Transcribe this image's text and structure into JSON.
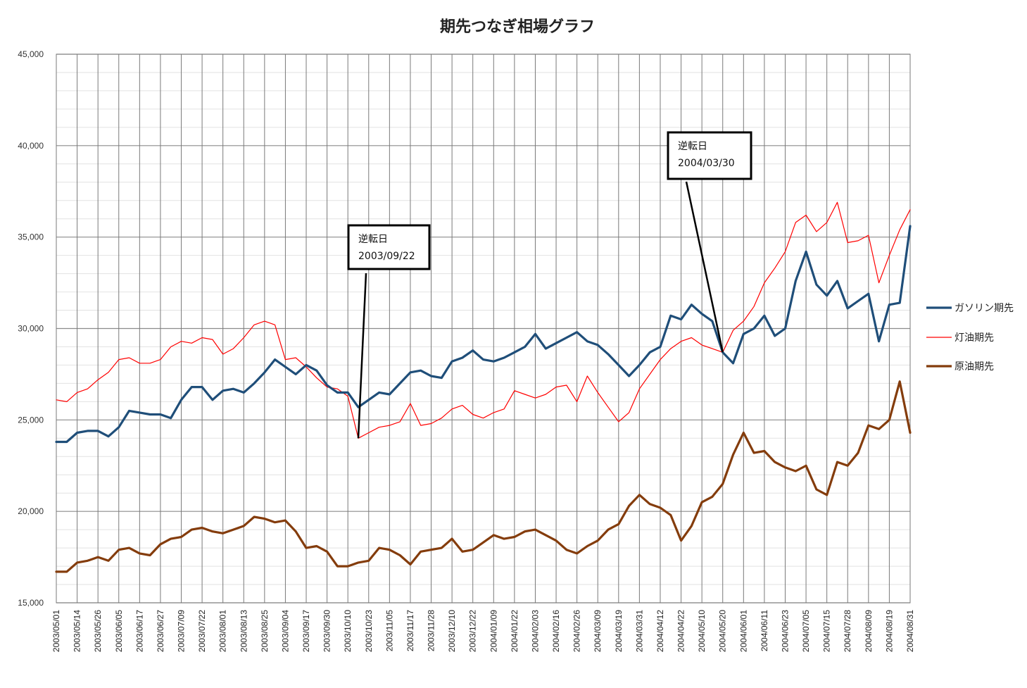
{
  "chart_data": {
    "type": "line",
    "title": "期先つなぎ相場グラフ",
    "xlabel": "",
    "ylabel": "",
    "ylim": [
      15000,
      45000
    ],
    "yticks": [
      15000,
      20000,
      25000,
      30000,
      35000,
      40000,
      45000
    ],
    "ytick_labels": [
      "15,000",
      "20,000",
      "25,000",
      "30,000",
      "35,000",
      "40,000",
      "45,000"
    ],
    "grid": true,
    "legend_position": "right",
    "x_tick_labels": [
      "2003/05/01",
      "2003/05/14",
      "2003/05/26",
      "2003/06/05",
      "2003/06/17",
      "2003/06/27",
      "2003/07/09",
      "2003/07/22",
      "2003/08/01",
      "2003/08/13",
      "2003/08/25",
      "2003/09/04",
      "2003/09/17",
      "2003/09/30",
      "2003/10/10",
      "2003/10/23",
      "2003/11/05",
      "2003/11/17",
      "2003/11/28",
      "2003/12/10",
      "2003/12/22",
      "2004/01/09",
      "2004/01/22",
      "2004/02/03",
      "2004/02/16",
      "2004/02/26",
      "2004/03/09",
      "2004/03/19",
      "2004/03/31",
      "2004/04/12",
      "2004/04/22",
      "2004/05/10",
      "2004/05/20",
      "2004/06/01",
      "2004/06/11",
      "2004/06/23",
      "2004/07/05",
      "2004/07/15",
      "2004/07/28",
      "2004/08/09",
      "2004/08/19",
      "2004/08/31"
    ],
    "x_index_range": [
      0,
      82
    ],
    "series": [
      {
        "name": "ガソリン期先",
        "color": "#1f4e79",
        "x": [
          0,
          1,
          2,
          3,
          4,
          5,
          6,
          7,
          8,
          9,
          10,
          11,
          12,
          13,
          14,
          15,
          16,
          17,
          18,
          19,
          20,
          21,
          22,
          23,
          24,
          25,
          26,
          27,
          28,
          29,
          30,
          31,
          32,
          33,
          34,
          35,
          36,
          37,
          38,
          39,
          40,
          41,
          42,
          43,
          44,
          45,
          46,
          47,
          48,
          49,
          50,
          51,
          52,
          53,
          54,
          55,
          56,
          57,
          58,
          59,
          60,
          61,
          62,
          63,
          64,
          65,
          66,
          67,
          68,
          69,
          70,
          71,
          72,
          73,
          74,
          75,
          76,
          77,
          78,
          79,
          80,
          81,
          82
        ],
        "values": [
          23800,
          23800,
          24300,
          24400,
          24400,
          24100,
          24600,
          25500,
          25400,
          25300,
          25300,
          25100,
          26100,
          26800,
          26800,
          26100,
          26600,
          26700,
          26500,
          27000,
          27600,
          28300,
          27900,
          27500,
          28000,
          27700,
          26900,
          26500,
          26500,
          25700,
          26100,
          26500,
          26400,
          27000,
          27600,
          27700,
          27400,
          27300,
          28200,
          28400,
          28800,
          28300,
          28200,
          28400,
          28700,
          29000,
          29700,
          28900,
          29200,
          29500,
          29800,
          29300,
          29100,
          28600,
          28000,
          27400,
          28000,
          28700,
          29000,
          30700,
          30500,
          31300,
          30800,
          30400,
          28700,
          28100,
          29700,
          30000,
          30700,
          29600,
          30000,
          32600,
          34200,
          32400,
          31800,
          32600,
          31100,
          31500,
          31900,
          29300,
          31300,
          31400,
          35600
        ],
        "x2": [],
        "notes_on_series": ""
      },
      {
        "name": "灯油期先",
        "color": "#ff0000",
        "x": [
          0,
          1,
          2,
          3,
          4,
          5,
          6,
          7,
          8,
          9,
          10,
          11,
          12,
          13,
          14,
          15,
          16,
          17,
          18,
          19,
          20,
          21,
          22,
          23,
          24,
          25,
          26,
          27,
          28,
          29,
          30,
          31,
          32,
          33,
          34,
          35,
          36,
          37,
          38,
          39,
          40,
          41,
          42,
          43,
          44,
          45,
          46,
          47,
          48,
          49,
          50,
          51,
          52,
          53,
          54,
          55,
          56,
          57,
          58,
          59,
          60,
          61,
          62,
          63,
          64,
          65,
          66,
          67,
          68,
          69,
          70,
          71,
          72,
          73,
          74,
          75,
          76,
          77,
          78,
          79,
          80,
          81,
          82
        ],
        "values": [
          26100,
          26000,
          26500,
          26700,
          27200,
          27600,
          28300,
          28400,
          28100,
          28100,
          28300,
          29000,
          29300,
          29200,
          29500,
          29400,
          28600,
          28900,
          29500,
          30200,
          30400,
          30200,
          28300,
          28400,
          27900,
          27300,
          26800,
          26700,
          26300,
          24000,
          24300,
          24600,
          24700,
          24900,
          25900,
          24700,
          24800,
          25100,
          25600,
          25800,
          25300,
          25100,
          25400,
          25600,
          26600,
          26400,
          26200,
          26400,
          26800,
          26900,
          26000,
          27400,
          26500,
          25700,
          24900,
          25400,
          26700,
          27500,
          28300,
          28900,
          29300,
          29500,
          29100,
          28900,
          28700,
          29900,
          30400,
          31200,
          32500,
          33300,
          34200,
          35800,
          36200,
          35300,
          35800,
          36900,
          34700,
          34800,
          35100,
          32500,
          34000,
          35400,
          36500
        ],
        "x2": [],
        "notes_on_series": ""
      },
      {
        "name": "原油期先",
        "color": "#843c0c",
        "x": [
          0,
          1,
          2,
          3,
          4,
          5,
          6,
          7,
          8,
          9,
          10,
          11,
          12,
          13,
          14,
          15,
          16,
          17,
          18,
          19,
          20,
          21,
          22,
          23,
          24,
          25,
          26,
          27,
          28,
          29,
          30,
          31,
          32,
          33,
          34,
          35,
          36,
          37,
          38,
          39,
          40,
          41,
          42,
          43,
          44,
          45,
          46,
          47,
          48,
          49,
          50,
          51,
          52,
          53,
          54,
          55,
          56,
          57,
          58,
          59,
          60,
          61,
          62,
          63,
          64,
          65,
          66,
          67,
          68,
          69,
          70,
          71,
          72,
          73,
          74,
          75,
          76,
          77,
          78,
          79,
          80,
          81,
          82
        ],
        "values": [
          16700,
          16700,
          17200,
          17300,
          17500,
          17300,
          17900,
          18000,
          17700,
          17600,
          18200,
          18500,
          18600,
          19000,
          19100,
          18900,
          18800,
          19000,
          19200,
          19700,
          19600,
          19400,
          19500,
          18900,
          18000,
          18100,
          17800,
          17000,
          17000,
          17200,
          17300,
          18000,
          17900,
          17600,
          17100,
          17800,
          17900,
          18000,
          18500,
          17800,
          17900,
          18300,
          18700,
          18500,
          18600,
          18900,
          19000,
          18700,
          18400,
          17900,
          17700,
          18100,
          18400,
          19000,
          19300,
          20300,
          20900,
          20400,
          20200,
          19800,
          18400,
          19200,
          20500,
          20800,
          21500,
          23100,
          24300,
          23200,
          23300,
          22700,
          22400,
          22200,
          22500,
          21200,
          20900,
          22700,
          22500,
          23200,
          24700,
          24500,
          25000,
          27100,
          24300
        ],
        "x2": [],
        "notes_on_series": ""
      }
    ],
    "annotations": [
      {
        "line1": "逆転日",
        "line2": "2003/09/22",
        "target_x": 29,
        "target_y": 24000
      },
      {
        "line1": "逆転日",
        "line2": "2004/03/30",
        "target_x": 64,
        "target_y": 28700
      }
    ]
  }
}
